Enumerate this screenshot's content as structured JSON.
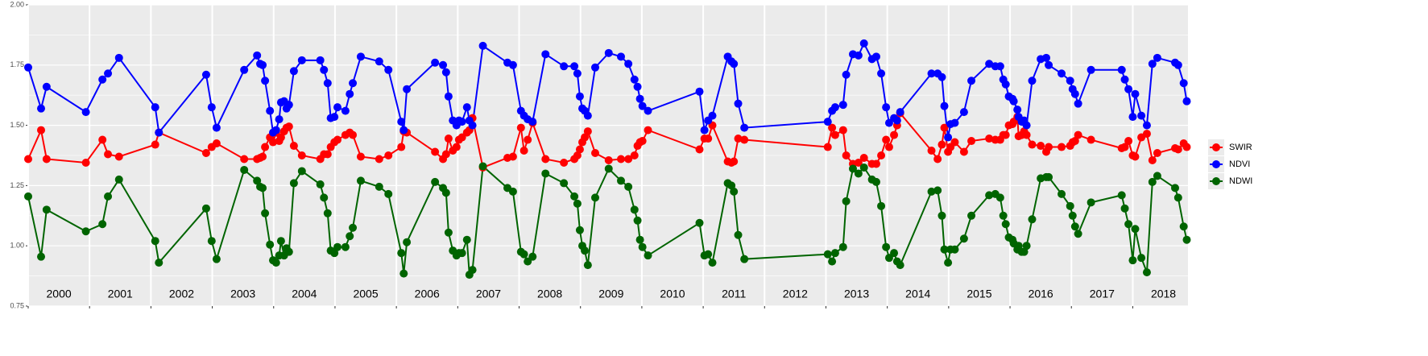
{
  "chart_data": {
    "type": "line",
    "x": [
      2000.0,
      2000.21,
      2000.3,
      2000.94,
      2001.21,
      2001.3,
      2001.48,
      2002.07,
      2002.13,
      2002.9,
      2002.99,
      2003.07,
      2003.52,
      2003.73,
      2003.78,
      2003.82,
      2003.86,
      2003.94,
      2003.99,
      2004.04,
      2004.09,
      2004.12,
      2004.17,
      2004.21,
      2004.25,
      2004.33,
      2004.46,
      2004.76,
      2004.82,
      2004.88,
      2004.93,
      2004.99,
      2005.04,
      2005.17,
      2005.24,
      2005.29,
      2005.42,
      2005.72,
      2005.87,
      2006.08,
      2006.12,
      2006.17,
      2006.63,
      2006.76,
      2006.81,
      2006.85,
      2006.92,
      2006.98,
      2007.02,
      2007.07,
      2007.15,
      2007.19,
      2007.24,
      2007.41,
      2007.81,
      2007.9,
      2008.03,
      2008.08,
      2008.14,
      2008.22,
      2008.43,
      2008.73,
      2008.9,
      2008.95,
      2008.99,
      2009.03,
      2009.07,
      2009.12,
      2009.24,
      2009.46,
      2009.66,
      2009.78,
      2009.88,
      2009.93,
      2009.97,
      2010.01,
      2010.1,
      2010.94,
      2011.02,
      2011.08,
      2011.15,
      2011.4,
      2011.46,
      2011.5,
      2011.57,
      2011.67,
      2013.03,
      2013.1,
      2013.15,
      2013.28,
      2013.33,
      2013.44,
      2013.53,
      2013.62,
      2013.75,
      2013.82,
      2013.9,
      2013.98,
      2014.03,
      2014.11,
      2014.16,
      2014.21,
      2014.72,
      2014.82,
      2014.89,
      2014.93,
      2014.99,
      2015.03,
      2015.1,
      2015.25,
      2015.37,
      2015.66,
      2015.76,
      2015.84,
      2015.89,
      2015.93,
      2015.98,
      2016.04,
      2016.06,
      2016.12,
      2016.14,
      2016.19,
      2016.23,
      2016.27,
      2016.36,
      2016.5,
      2016.59,
      2016.63,
      2016.84,
      2016.98,
      2017.02,
      2017.06,
      2017.11,
      2017.32,
      2017.82,
      2017.87,
      2017.93,
      2018.0,
      2018.04,
      2018.14,
      2018.23,
      2018.32,
      2018.4,
      2018.69,
      2018.74,
      2018.83,
      2018.88
    ],
    "series": [
      {
        "name": "SWIR",
        "color": "#ff0000",
        "values": [
          1.36,
          1.48,
          1.36,
          1.345,
          1.44,
          1.38,
          1.37,
          1.42,
          1.47,
          1.385,
          1.41,
          1.425,
          1.36,
          1.36,
          1.365,
          1.37,
          1.41,
          1.45,
          1.43,
          1.47,
          1.435,
          1.45,
          1.475,
          1.49,
          1.495,
          1.415,
          1.375,
          1.36,
          1.38,
          1.38,
          1.41,
          1.43,
          1.44,
          1.46,
          1.47,
          1.46,
          1.37,
          1.36,
          1.375,
          1.41,
          1.475,
          1.47,
          1.39,
          1.36,
          1.38,
          1.445,
          1.395,
          1.41,
          1.44,
          1.45,
          1.47,
          1.48,
          1.53,
          1.325,
          1.365,
          1.37,
          1.49,
          1.395,
          1.44,
          1.51,
          1.36,
          1.345,
          1.36,
          1.375,
          1.4,
          1.43,
          1.45,
          1.475,
          1.385,
          1.355,
          1.36,
          1.36,
          1.375,
          1.415,
          1.43,
          1.435,
          1.48,
          1.4,
          1.445,
          1.445,
          1.5,
          1.35,
          1.345,
          1.35,
          1.445,
          1.44,
          1.41,
          1.49,
          1.46,
          1.48,
          1.375,
          1.34,
          1.345,
          1.365,
          1.34,
          1.34,
          1.375,
          1.44,
          1.41,
          1.46,
          1.5,
          1.55,
          1.395,
          1.36,
          1.42,
          1.49,
          1.39,
          1.41,
          1.43,
          1.39,
          1.435,
          1.445,
          1.44,
          1.44,
          1.46,
          1.46,
          1.5,
          1.505,
          1.515,
          1.535,
          1.455,
          1.46,
          1.475,
          1.46,
          1.42,
          1.415,
          1.39,
          1.41,
          1.41,
          1.415,
          1.43,
          1.435,
          1.46,
          1.44,
          1.405,
          1.41,
          1.435,
          1.375,
          1.37,
          1.45,
          1.465,
          1.355,
          1.385,
          1.405,
          1.4,
          1.425,
          1.41
        ]
      },
      {
        "name": "NDVI",
        "color": "#0000ff",
        "values": [
          1.74,
          1.57,
          1.66,
          1.555,
          1.69,
          1.715,
          1.78,
          1.575,
          1.47,
          1.71,
          1.575,
          1.49,
          1.73,
          1.79,
          1.755,
          1.75,
          1.685,
          1.56,
          1.47,
          1.48,
          1.525,
          1.595,
          1.6,
          1.57,
          1.585,
          1.725,
          1.77,
          1.77,
          1.73,
          1.675,
          1.53,
          1.535,
          1.575,
          1.56,
          1.63,
          1.675,
          1.785,
          1.765,
          1.73,
          1.515,
          1.48,
          1.65,
          1.76,
          1.75,
          1.72,
          1.62,
          1.52,
          1.5,
          1.52,
          1.515,
          1.575,
          1.52,
          1.5,
          1.83,
          1.76,
          1.75,
          1.56,
          1.54,
          1.525,
          1.515,
          1.795,
          1.745,
          1.745,
          1.715,
          1.62,
          1.57,
          1.56,
          1.54,
          1.74,
          1.8,
          1.785,
          1.755,
          1.69,
          1.66,
          1.61,
          1.58,
          1.56,
          1.64,
          1.48,
          1.52,
          1.54,
          1.785,
          1.765,
          1.755,
          1.59,
          1.49,
          1.515,
          1.56,
          1.575,
          1.585,
          1.71,
          1.795,
          1.79,
          1.84,
          1.775,
          1.785,
          1.715,
          1.575,
          1.51,
          1.53,
          1.52,
          1.555,
          1.715,
          1.715,
          1.7,
          1.58,
          1.45,
          1.505,
          1.51,
          1.555,
          1.685,
          1.755,
          1.745,
          1.745,
          1.69,
          1.67,
          1.62,
          1.61,
          1.6,
          1.565,
          1.535,
          1.515,
          1.52,
          1.5,
          1.685,
          1.775,
          1.78,
          1.75,
          1.715,
          1.685,
          1.65,
          1.63,
          1.59,
          1.73,
          1.73,
          1.69,
          1.65,
          1.535,
          1.63,
          1.54,
          1.5,
          1.755,
          1.78,
          1.76,
          1.75,
          1.675,
          1.6
        ]
      },
      {
        "name": "NDWI",
        "color": "#006400",
        "values": [
          1.205,
          0.955,
          1.15,
          1.06,
          1.09,
          1.205,
          1.275,
          1.02,
          0.93,
          1.155,
          1.02,
          0.945,
          1.315,
          1.27,
          1.245,
          1.24,
          1.135,
          1.005,
          0.94,
          0.93,
          0.96,
          1.02,
          0.96,
          0.99,
          0.975,
          1.26,
          1.31,
          1.255,
          1.2,
          1.135,
          0.98,
          0.97,
          0.995,
          0.995,
          1.04,
          1.075,
          1.27,
          1.245,
          1.215,
          0.97,
          0.885,
          1.015,
          1.265,
          1.24,
          1.22,
          1.055,
          0.98,
          0.96,
          0.97,
          0.97,
          1.025,
          0.88,
          0.9,
          1.33,
          1.24,
          1.225,
          0.975,
          0.965,
          0.935,
          0.955,
          1.3,
          1.26,
          1.205,
          1.175,
          1.065,
          1.0,
          0.98,
          0.92,
          1.2,
          1.32,
          1.27,
          1.245,
          1.15,
          1.105,
          1.025,
          0.995,
          0.96,
          1.095,
          0.96,
          0.965,
          0.93,
          1.26,
          1.25,
          1.225,
          1.045,
          0.945,
          0.965,
          0.935,
          0.97,
          0.995,
          1.185,
          1.32,
          1.3,
          1.325,
          1.275,
          1.265,
          1.165,
          0.995,
          0.95,
          0.97,
          0.935,
          0.92,
          1.225,
          1.23,
          1.125,
          0.985,
          0.93,
          0.985,
          0.985,
          1.03,
          1.125,
          1.21,
          1.215,
          1.2,
          1.125,
          1.09,
          1.035,
          1.025,
          1.01,
          0.985,
          1.0,
          0.975,
          0.975,
          1.0,
          1.11,
          1.28,
          1.285,
          1.285,
          1.215,
          1.165,
          1.125,
          1.08,
          1.05,
          1.18,
          1.21,
          1.155,
          1.09,
          0.94,
          1.07,
          0.95,
          0.89,
          1.265,
          1.29,
          1.24,
          1.2,
          1.08,
          1.025
        ]
      }
    ],
    "xlim": [
      2000,
      2018.9
    ],
    "xticks": [
      {
        "value": 2000,
        "label": "2000"
      },
      {
        "value": 2001,
        "label": "2001"
      },
      {
        "value": 2002,
        "label": "2002"
      },
      {
        "value": 2003,
        "label": "2003"
      },
      {
        "value": 2004,
        "label": "2004"
      },
      {
        "value": 2005,
        "label": "2005"
      },
      {
        "value": 2006,
        "label": "2006"
      },
      {
        "value": 2007,
        "label": "2007"
      },
      {
        "value": 2008,
        "label": "2008"
      },
      {
        "value": 2009,
        "label": "2009"
      },
      {
        "value": 2010,
        "label": "2010"
      },
      {
        "value": 2011,
        "label": "2011"
      },
      {
        "value": 2012,
        "label": "2012"
      },
      {
        "value": 2013,
        "label": "2013"
      },
      {
        "value": 2014,
        "label": "2014"
      },
      {
        "value": 2015,
        "label": "2015"
      },
      {
        "value": 2016,
        "label": "2016"
      },
      {
        "value": 2017,
        "label": "2017"
      },
      {
        "value": 2018,
        "label": "2018"
      }
    ],
    "ylim": [
      0.75,
      2.0
    ],
    "yticks": [
      {
        "value": 0.75,
        "label": "0.75"
      },
      {
        "value": 1.0,
        "label": "1.00"
      },
      {
        "value": 1.25,
        "label": "1.25"
      },
      {
        "value": 1.5,
        "label": "1.50"
      },
      {
        "value": 1.75,
        "label": "1.75"
      },
      {
        "value": 2.0,
        "label": "2.00"
      }
    ],
    "grid": true,
    "legend": "right"
  }
}
